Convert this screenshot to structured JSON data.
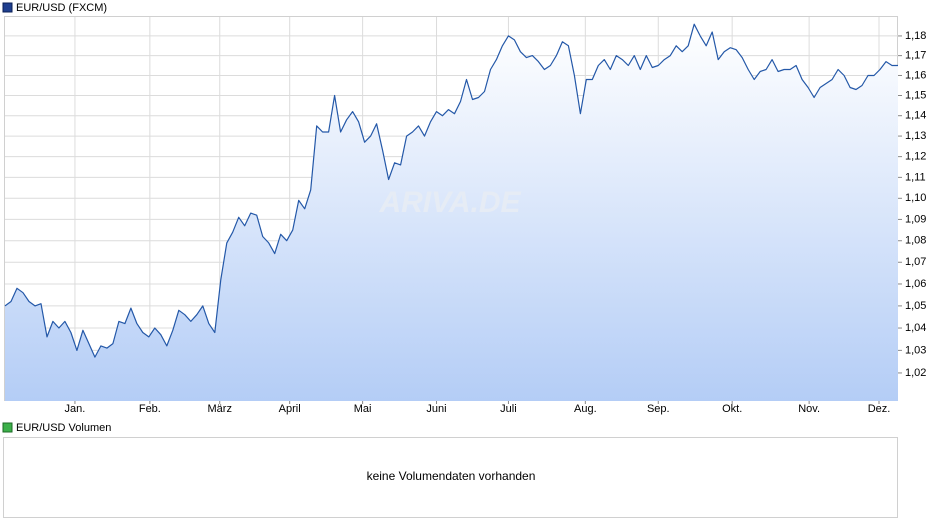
{
  "chart_data": {
    "type": "line",
    "legend": "EUR/USD (FXCM)",
    "watermark": "ARIVA.DE",
    "color": "#2458a8",
    "log_scale": true,
    "grid": true,
    "xlim": [
      0,
      149
    ],
    "xticks": [
      {
        "value": 11.67,
        "label": "Jan."
      },
      {
        "value": 24.17,
        "label": "Feb."
      },
      {
        "value": 35.83,
        "label": "März"
      },
      {
        "value": 47.5,
        "label": "April"
      },
      {
        "value": 59.67,
        "label": "Mai"
      },
      {
        "value": 72,
        "label": "Juni"
      },
      {
        "value": 84,
        "label": "Juli"
      },
      {
        "value": 96.83,
        "label": "Aug."
      },
      {
        "value": 109,
        "label": "Sep."
      },
      {
        "value": 121.33,
        "label": "Okt."
      },
      {
        "value": 134.17,
        "label": "Nov."
      },
      {
        "value": 145.83,
        "label": "Dez."
      }
    ],
    "ylim": [
      1.0077,
      1.1897
    ],
    "yticks": [
      {
        "value": 1.02,
        "label": "1,02"
      },
      {
        "value": 1.03,
        "label": "1,03"
      },
      {
        "value": 1.04,
        "label": "1,04"
      },
      {
        "value": 1.05,
        "label": "1,05"
      },
      {
        "value": 1.06,
        "label": "1,06"
      },
      {
        "value": 1.07,
        "label": "1,07"
      },
      {
        "value": 1.08,
        "label": "1,08"
      },
      {
        "value": 1.09,
        "label": "1,09"
      },
      {
        "value": 1.1,
        "label": "1,10"
      },
      {
        "value": 1.11,
        "label": "1,11"
      },
      {
        "value": 1.12,
        "label": "1,12"
      },
      {
        "value": 1.13,
        "label": "1,13"
      },
      {
        "value": 1.14,
        "label": "1,14"
      },
      {
        "value": 1.15,
        "label": "1,15"
      },
      {
        "value": 1.16,
        "label": "1,16"
      },
      {
        "value": 1.17,
        "label": "1,17"
      },
      {
        "value": 1.18,
        "label": "1,18"
      }
    ],
    "values": [
      1.05,
      1.052,
      1.058,
      1.056,
      1.052,
      1.05,
      1.051,
      1.036,
      1.043,
      1.04,
      1.043,
      1.038,
      1.03,
      1.039,
      1.033,
      1.027,
      1.032,
      1.031,
      1.033,
      1.043,
      1.042,
      1.049,
      1.042,
      1.038,
      1.036,
      1.04,
      1.037,
      1.032,
      1.039,
      1.048,
      1.046,
      1.043,
      1.046,
      1.05,
      1.042,
      1.038,
      1.062,
      1.079,
      1.084,
      1.091,
      1.087,
      1.093,
      1.092,
      1.082,
      1.079,
      1.074,
      1.083,
      1.08,
      1.085,
      1.099,
      1.095,
      1.104,
      1.135,
      1.132,
      1.132,
      1.15,
      1.132,
      1.138,
      1.142,
      1.137,
      1.127,
      1.13,
      1.136,
      1.123,
      1.109,
      1.117,
      1.116,
      1.13,
      1.132,
      1.135,
      1.13,
      1.137,
      1.142,
      1.14,
      1.143,
      1.141,
      1.147,
      1.158,
      1.148,
      1.149,
      1.152,
      1.163,
      1.168,
      1.175,
      1.18,
      1.178,
      1.172,
      1.169,
      1.17,
      1.167,
      1.163,
      1.165,
      1.17,
      1.177,
      1.175,
      1.16,
      1.141,
      1.158,
      1.158,
      1.165,
      1.168,
      1.163,
      1.17,
      1.168,
      1.165,
      1.17,
      1.163,
      1.17,
      1.164,
      1.165,
      1.168,
      1.17,
      1.175,
      1.172,
      1.175,
      1.186,
      1.18,
      1.175,
      1.182,
      1.168,
      1.172,
      1.174,
      1.173,
      1.169,
      1.163,
      1.158,
      1.162,
      1.163,
      1.168,
      1.162,
      1.163,
      1.163,
      1.165,
      1.158,
      1.154,
      1.149,
      1.154,
      1.156,
      1.158,
      1.163,
      1.16,
      1.154,
      1.153,
      1.155,
      1.16,
      1.16,
      1.163,
      1.167,
      1.165,
      1.165
    ],
    "volume": {
      "legend": "EUR/USD Volumen",
      "color": "#3cb04a",
      "message": "keine Volumendaten vorhanden"
    }
  }
}
